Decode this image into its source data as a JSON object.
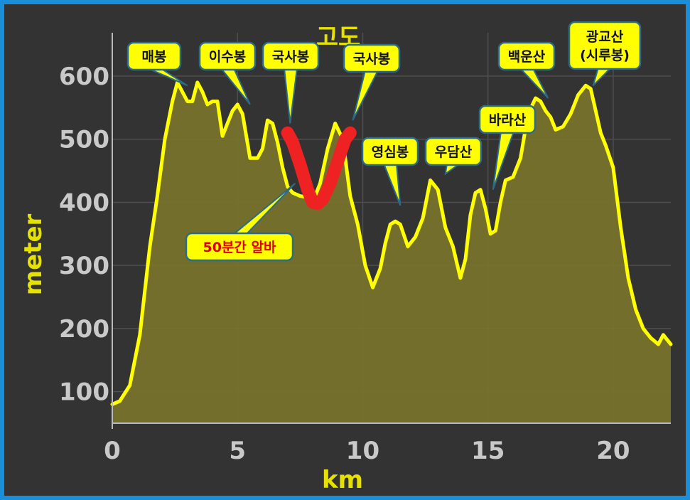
{
  "chart_data": {
    "type": "area",
    "title": "고도",
    "xlabel": "km",
    "ylabel": "meter",
    "xlim": [
      0,
      22.3
    ],
    "ylim": [
      50,
      680
    ],
    "xticks": [
      "0",
      "5",
      "10",
      "15",
      "20"
    ],
    "yticks": [
      "100",
      "200",
      "300",
      "400",
      "500",
      "600"
    ],
    "grid": true,
    "colors": {
      "line": "#ffff00",
      "fill": "#77722c",
      "highlight": "#ee2222"
    },
    "x": [
      0,
      0.3,
      0.7,
      1.1,
      1.5,
      1.8,
      2.1,
      2.4,
      2.6,
      2.8,
      3.0,
      3.2,
      3.4,
      3.6,
      3.8,
      4.0,
      4.2,
      4.4,
      4.6,
      4.8,
      5.0,
      5.2,
      5.5,
      5.8,
      6.0,
      6.2,
      6.4,
      6.6,
      6.8,
      7.0,
      7.2,
      7.5,
      7.8,
      8.1,
      8.3,
      8.6,
      8.9,
      9.2,
      9.5,
      9.8,
      10.1,
      10.4,
      10.7,
      10.9,
      11.1,
      11.3,
      11.5,
      11.8,
      12.1,
      12.4,
      12.7,
      13.0,
      13.3,
      13.6,
      13.9,
      14.1,
      14.3,
      14.5,
      14.7,
      14.9,
      15.1,
      15.3,
      15.5,
      15.7,
      16.0,
      16.3,
      16.6,
      16.9,
      17.1,
      17.3,
      17.5,
      17.7,
      18.0,
      18.3,
      18.6,
      18.9,
      19.1,
      19.3,
      19.5,
      19.7,
      20.0,
      20.3,
      20.6,
      20.9,
      21.2,
      21.5,
      21.8,
      22.0,
      22.3
    ],
    "values": [
      80,
      85,
      110,
      190,
      330,
      410,
      500,
      560,
      590,
      575,
      560,
      560,
      590,
      575,
      555,
      560,
      560,
      505,
      525,
      545,
      555,
      540,
      470,
      470,
      485,
      530,
      525,
      495,
      455,
      425,
      415,
      410,
      408,
      410,
      430,
      485,
      525,
      500,
      410,
      365,
      300,
      265,
      295,
      335,
      365,
      370,
      365,
      330,
      345,
      375,
      435,
      420,
      360,
      330,
      280,
      310,
      380,
      415,
      420,
      390,
      350,
      355,
      400,
      435,
      440,
      470,
      540,
      565,
      560,
      545,
      535,
      515,
      520,
      540,
      570,
      585,
      580,
      545,
      510,
      490,
      455,
      360,
      280,
      230,
      200,
      185,
      175,
      190,
      175
    ],
    "highlight": {
      "x": [
        7.0,
        7.2,
        7.5,
        7.8,
        8.0,
        8.2,
        8.4,
        8.7,
        9.0,
        9.3,
        9.5
      ],
      "values": [
        510,
        495,
        460,
        420,
        400,
        398,
        405,
        430,
        465,
        500,
        510
      ]
    },
    "annotations": [
      {
        "label": "매봉",
        "x": 3.0,
        "y": 585
      },
      {
        "label": "이수봉",
        "x": 5.5,
        "y": 555
      },
      {
        "label": "국사봉",
        "x": 7.1,
        "y": 525
      },
      {
        "label": "국사봉",
        "x": 9.6,
        "y": 530
      },
      {
        "label": "영심봉",
        "x": 11.5,
        "y": 395
      },
      {
        "label": "우담산",
        "x": 13.3,
        "y": 445
      },
      {
        "label": "바라산",
        "x": 15.2,
        "y": 420
      },
      {
        "label": "백운산",
        "x": 17.4,
        "y": 565
      },
      {
        "label": "광교산\n(시루봉)",
        "x": 19.2,
        "y": 585
      },
      {
        "label": "50분간 알바",
        "x": 7.3,
        "y": 430,
        "color": "red"
      }
    ]
  }
}
